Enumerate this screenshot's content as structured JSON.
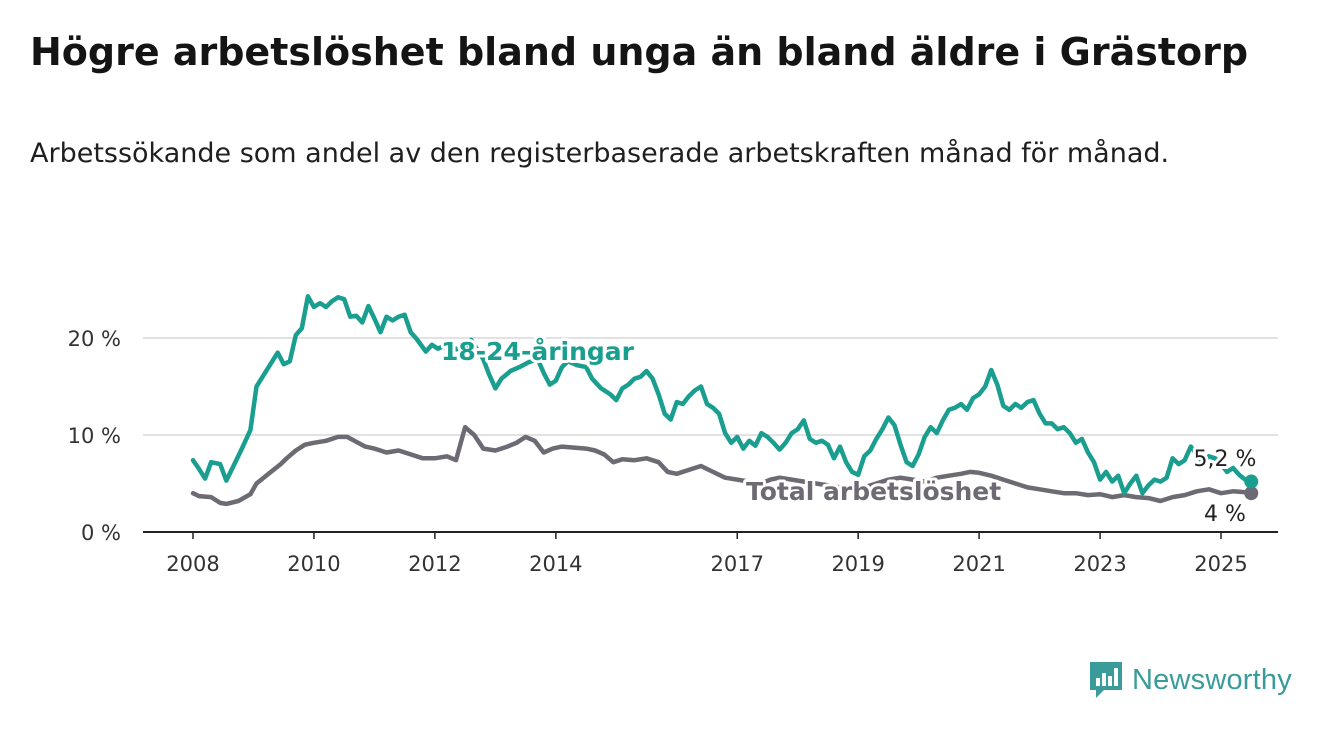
{
  "header": {
    "title": "Högre arbetslöshet bland unga än bland äldre i Grästorp",
    "subtitle": "Arbetssökande som andel av den registerbaserade arbetskraften månad för månad."
  },
  "brand": {
    "name": "Newsworthy",
    "icon": "newsworthy-logo-icon"
  },
  "colors": {
    "youth": "#1a9e8f",
    "total": "#6e6a73",
    "grid": "#d9d9d9",
    "axis": "#222222"
  },
  "chart_data": {
    "type": "line",
    "title": "Högre arbetslöshet bland unga än bland äldre i Grästorp",
    "xlabel": "",
    "ylabel": "",
    "xlim": [
      2008,
      2025
    ],
    "ylim": [
      0,
      25
    ],
    "x_ticks": [
      2008,
      2010,
      2012,
      2014,
      2017,
      2019,
      2021,
      2023,
      2025
    ],
    "x_tick_labels": [
      "2008",
      "2010",
      "2012",
      "2014",
      "2017",
      "2019",
      "2021",
      "2023",
      "2025"
    ],
    "y_ticks": [
      0,
      10,
      20
    ],
    "y_tick_labels": [
      "0 %",
      "10 %",
      "20 %"
    ],
    "grid": "horizontal",
    "series": [
      {
        "name": "18-24-åringar",
        "color": "#1a9e8f",
        "end_label": "5,2 %",
        "points": [
          [
            2008.0,
            7.4
          ],
          [
            2008.1,
            6.5
          ],
          [
            2008.2,
            5.5
          ],
          [
            2008.3,
            7.2
          ],
          [
            2008.45,
            7.0
          ],
          [
            2008.55,
            5.3
          ],
          [
            2008.7,
            7.2
          ],
          [
            2008.8,
            8.5
          ],
          [
            2008.95,
            10.5
          ],
          [
            2009.05,
            15.0
          ],
          [
            2009.2,
            16.5
          ],
          [
            2009.4,
            18.5
          ],
          [
            2009.5,
            17.3
          ],
          [
            2009.6,
            17.6
          ],
          [
            2009.7,
            20.3
          ],
          [
            2009.8,
            21.0
          ],
          [
            2009.9,
            24.3
          ],
          [
            2010.0,
            23.2
          ],
          [
            2010.1,
            23.6
          ],
          [
            2010.2,
            23.2
          ],
          [
            2010.3,
            23.8
          ],
          [
            2010.4,
            24.2
          ],
          [
            2010.5,
            24.0
          ],
          [
            2010.6,
            22.2
          ],
          [
            2010.7,
            22.3
          ],
          [
            2010.8,
            21.6
          ],
          [
            2010.9,
            23.3
          ],
          [
            2011.0,
            22.0
          ],
          [
            2011.1,
            20.6
          ],
          [
            2011.2,
            22.2
          ],
          [
            2011.3,
            21.8
          ],
          [
            2011.4,
            22.2
          ],
          [
            2011.5,
            22.4
          ],
          [
            2011.6,
            20.6
          ],
          [
            2011.7,
            19.9
          ],
          [
            2011.85,
            18.6
          ],
          [
            2011.95,
            19.3
          ],
          [
            2012.05,
            18.9
          ],
          [
            2012.15,
            19.2
          ],
          [
            2012.25,
            18.6
          ],
          [
            2012.35,
            18.9
          ],
          [
            2012.45,
            18.7
          ],
          [
            2012.6,
            19.8
          ],
          [
            2012.7,
            18.8
          ],
          [
            2012.8,
            17.8
          ],
          [
            2012.9,
            16.2
          ],
          [
            2013.0,
            14.8
          ],
          [
            2013.1,
            15.8
          ],
          [
            2013.25,
            16.6
          ],
          [
            2013.4,
            17.0
          ],
          [
            2013.55,
            17.5
          ],
          [
            2013.7,
            17.8
          ],
          [
            2013.8,
            16.4
          ],
          [
            2013.9,
            15.2
          ],
          [
            2014.0,
            15.6
          ],
          [
            2014.1,
            17.0
          ],
          [
            2014.2,
            17.6
          ],
          [
            2014.35,
            17.2
          ],
          [
            2014.5,
            17.0
          ],
          [
            2014.6,
            15.8
          ],
          [
            2014.75,
            14.8
          ],
          [
            2014.9,
            14.2
          ],
          [
            2015.0,
            13.6
          ],
          [
            2015.1,
            14.8
          ],
          [
            2015.2,
            15.2
          ],
          [
            2015.3,
            15.8
          ],
          [
            2015.4,
            16.0
          ],
          [
            2015.5,
            16.6
          ],
          [
            2015.6,
            15.8
          ],
          [
            2015.7,
            14.2
          ],
          [
            2015.8,
            12.2
          ],
          [
            2015.9,
            11.6
          ],
          [
            2016.0,
            13.4
          ],
          [
            2016.1,
            13.2
          ],
          [
            2016.2,
            14.0
          ],
          [
            2016.3,
            14.6
          ],
          [
            2016.4,
            15.0
          ],
          [
            2016.5,
            13.2
          ],
          [
            2016.6,
            12.8
          ],
          [
            2016.7,
            12.2
          ],
          [
            2016.8,
            10.2
          ],
          [
            2016.9,
            9.2
          ],
          [
            2017.0,
            9.8
          ],
          [
            2017.1,
            8.6
          ],
          [
            2017.2,
            9.4
          ],
          [
            2017.3,
            8.9
          ],
          [
            2017.4,
            10.2
          ],
          [
            2017.5,
            9.8
          ],
          [
            2017.6,
            9.2
          ],
          [
            2017.7,
            8.5
          ],
          [
            2017.8,
            9.2
          ],
          [
            2017.9,
            10.2
          ],
          [
            2018.0,
            10.6
          ],
          [
            2018.1,
            11.5
          ],
          [
            2018.2,
            9.6
          ],
          [
            2018.3,
            9.2
          ],
          [
            2018.4,
            9.4
          ],
          [
            2018.5,
            9.0
          ],
          [
            2018.6,
            7.6
          ],
          [
            2018.7,
            8.8
          ],
          [
            2018.8,
            7.2
          ],
          [
            2018.9,
            6.2
          ],
          [
            2019.0,
            5.9
          ],
          [
            2019.1,
            7.8
          ],
          [
            2019.2,
            8.4
          ],
          [
            2019.3,
            9.6
          ],
          [
            2019.4,
            10.6
          ],
          [
            2019.5,
            11.8
          ],
          [
            2019.6,
            11.0
          ],
          [
            2019.7,
            9.0
          ],
          [
            2019.8,
            7.2
          ],
          [
            2019.9,
            6.8
          ],
          [
            2020.0,
            8.0
          ],
          [
            2020.1,
            9.8
          ],
          [
            2020.2,
            10.8
          ],
          [
            2020.3,
            10.2
          ],
          [
            2020.4,
            11.5
          ],
          [
            2020.5,
            12.6
          ],
          [
            2020.6,
            12.8
          ],
          [
            2020.7,
            13.2
          ],
          [
            2020.8,
            12.6
          ],
          [
            2020.9,
            13.8
          ],
          [
            2021.0,
            14.2
          ],
          [
            2021.1,
            15.0
          ],
          [
            2021.2,
            16.7
          ],
          [
            2021.3,
            15.2
          ],
          [
            2021.4,
            13.0
          ],
          [
            2021.5,
            12.6
          ],
          [
            2021.6,
            13.2
          ],
          [
            2021.7,
            12.8
          ],
          [
            2021.8,
            13.4
          ],
          [
            2021.9,
            13.6
          ],
          [
            2022.0,
            12.2
          ],
          [
            2022.1,
            11.2
          ],
          [
            2022.2,
            11.2
          ],
          [
            2022.3,
            10.6
          ],
          [
            2022.4,
            10.8
          ],
          [
            2022.5,
            10.2
          ],
          [
            2022.6,
            9.2
          ],
          [
            2022.7,
            9.6
          ],
          [
            2022.8,
            8.2
          ],
          [
            2022.9,
            7.2
          ],
          [
            2023.0,
            5.4
          ],
          [
            2023.1,
            6.2
          ],
          [
            2023.2,
            5.2
          ],
          [
            2023.3,
            5.8
          ],
          [
            2023.4,
            4.0
          ],
          [
            2023.5,
            5.0
          ],
          [
            2023.6,
            5.8
          ],
          [
            2023.7,
            4.0
          ],
          [
            2023.8,
            4.8
          ],
          [
            2023.9,
            5.4
          ],
          [
            2024.0,
            5.2
          ],
          [
            2024.1,
            5.6
          ],
          [
            2024.2,
            7.6
          ],
          [
            2024.3,
            7.0
          ],
          [
            2024.4,
            7.4
          ],
          [
            2024.5,
            8.8
          ],
          [
            2024.6,
            8.0
          ],
          [
            2024.7,
            7.2
          ],
          [
            2024.8,
            7.8
          ],
          [
            2024.9,
            7.6
          ],
          [
            2025.0,
            7.0
          ],
          [
            2025.1,
            6.2
          ],
          [
            2025.2,
            6.6
          ],
          [
            2025.3,
            5.9
          ],
          [
            2025.4,
            5.4
          ],
          [
            2025.5,
            5.2
          ]
        ]
      },
      {
        "name": "Total arbetslöshet",
        "color": "#6e6a73",
        "end_label": "4 %",
        "points": [
          [
            2008.0,
            4.0
          ],
          [
            2008.1,
            3.7
          ],
          [
            2008.3,
            3.6
          ],
          [
            2008.45,
            3.0
          ],
          [
            2008.55,
            2.9
          ],
          [
            2008.75,
            3.2
          ],
          [
            2008.95,
            3.9
          ],
          [
            2009.05,
            5.0
          ],
          [
            2009.25,
            6.0
          ],
          [
            2009.45,
            7.0
          ],
          [
            2009.55,
            7.6
          ],
          [
            2009.7,
            8.4
          ],
          [
            2009.85,
            9.0
          ],
          [
            2010.0,
            9.2
          ],
          [
            2010.2,
            9.4
          ],
          [
            2010.4,
            9.8
          ],
          [
            2010.55,
            9.8
          ],
          [
            2010.7,
            9.3
          ],
          [
            2010.85,
            8.8
          ],
          [
            2011.0,
            8.6
          ],
          [
            2011.2,
            8.2
          ],
          [
            2011.4,
            8.4
          ],
          [
            2011.6,
            8.0
          ],
          [
            2011.8,
            7.6
          ],
          [
            2012.0,
            7.6
          ],
          [
            2012.2,
            7.8
          ],
          [
            2012.35,
            7.4
          ],
          [
            2012.5,
            10.8
          ],
          [
            2012.65,
            10.0
          ],
          [
            2012.8,
            8.6
          ],
          [
            2013.0,
            8.4
          ],
          [
            2013.2,
            8.8
          ],
          [
            2013.35,
            9.2
          ],
          [
            2013.5,
            9.8
          ],
          [
            2013.65,
            9.4
          ],
          [
            2013.8,
            8.2
          ],
          [
            2013.95,
            8.6
          ],
          [
            2014.1,
            8.8
          ],
          [
            2014.3,
            8.7
          ],
          [
            2014.5,
            8.6
          ],
          [
            2014.65,
            8.4
          ],
          [
            2014.8,
            8.0
          ],
          [
            2014.95,
            7.2
          ],
          [
            2015.1,
            7.5
          ],
          [
            2015.3,
            7.4
          ],
          [
            2015.5,
            7.6
          ],
          [
            2015.7,
            7.2
          ],
          [
            2015.85,
            6.2
          ],
          [
            2016.0,
            6.0
          ],
          [
            2016.2,
            6.4
          ],
          [
            2016.4,
            6.8
          ],
          [
            2016.6,
            6.2
          ],
          [
            2016.8,
            5.6
          ],
          [
            2017.0,
            5.4
          ],
          [
            2017.2,
            5.2
          ],
          [
            2017.4,
            5.0
          ],
          [
            2017.55,
            5.4
          ],
          [
            2017.7,
            5.6
          ],
          [
            2017.9,
            5.4
          ],
          [
            2018.1,
            5.2
          ],
          [
            2018.3,
            5.0
          ],
          [
            2018.5,
            4.8
          ],
          [
            2018.7,
            4.6
          ],
          [
            2018.9,
            4.4
          ],
          [
            2019.1,
            4.6
          ],
          [
            2019.3,
            5.0
          ],
          [
            2019.5,
            5.4
          ],
          [
            2019.7,
            5.6
          ],
          [
            2019.9,
            5.4
          ],
          [
            2020.1,
            5.2
          ],
          [
            2020.3,
            5.6
          ],
          [
            2020.5,
            5.8
          ],
          [
            2020.7,
            6.0
          ],
          [
            2020.85,
            6.2
          ],
          [
            2021.0,
            6.1
          ],
          [
            2021.2,
            5.8
          ],
          [
            2021.4,
            5.4
          ],
          [
            2021.6,
            5.0
          ],
          [
            2021.8,
            4.6
          ],
          [
            2022.0,
            4.4
          ],
          [
            2022.2,
            4.2
          ],
          [
            2022.4,
            4.0
          ],
          [
            2022.6,
            4.0
          ],
          [
            2022.8,
            3.8
          ],
          [
            2023.0,
            3.9
          ],
          [
            2023.2,
            3.6
          ],
          [
            2023.4,
            3.8
          ],
          [
            2023.6,
            3.6
          ],
          [
            2023.8,
            3.5
          ],
          [
            2024.0,
            3.2
          ],
          [
            2024.2,
            3.6
          ],
          [
            2024.4,
            3.8
          ],
          [
            2024.6,
            4.2
          ],
          [
            2024.8,
            4.4
          ],
          [
            2025.0,
            4.0
          ],
          [
            2025.2,
            4.2
          ],
          [
            2025.4,
            4.1
          ],
          [
            2025.5,
            4.0
          ]
        ]
      }
    ]
  }
}
